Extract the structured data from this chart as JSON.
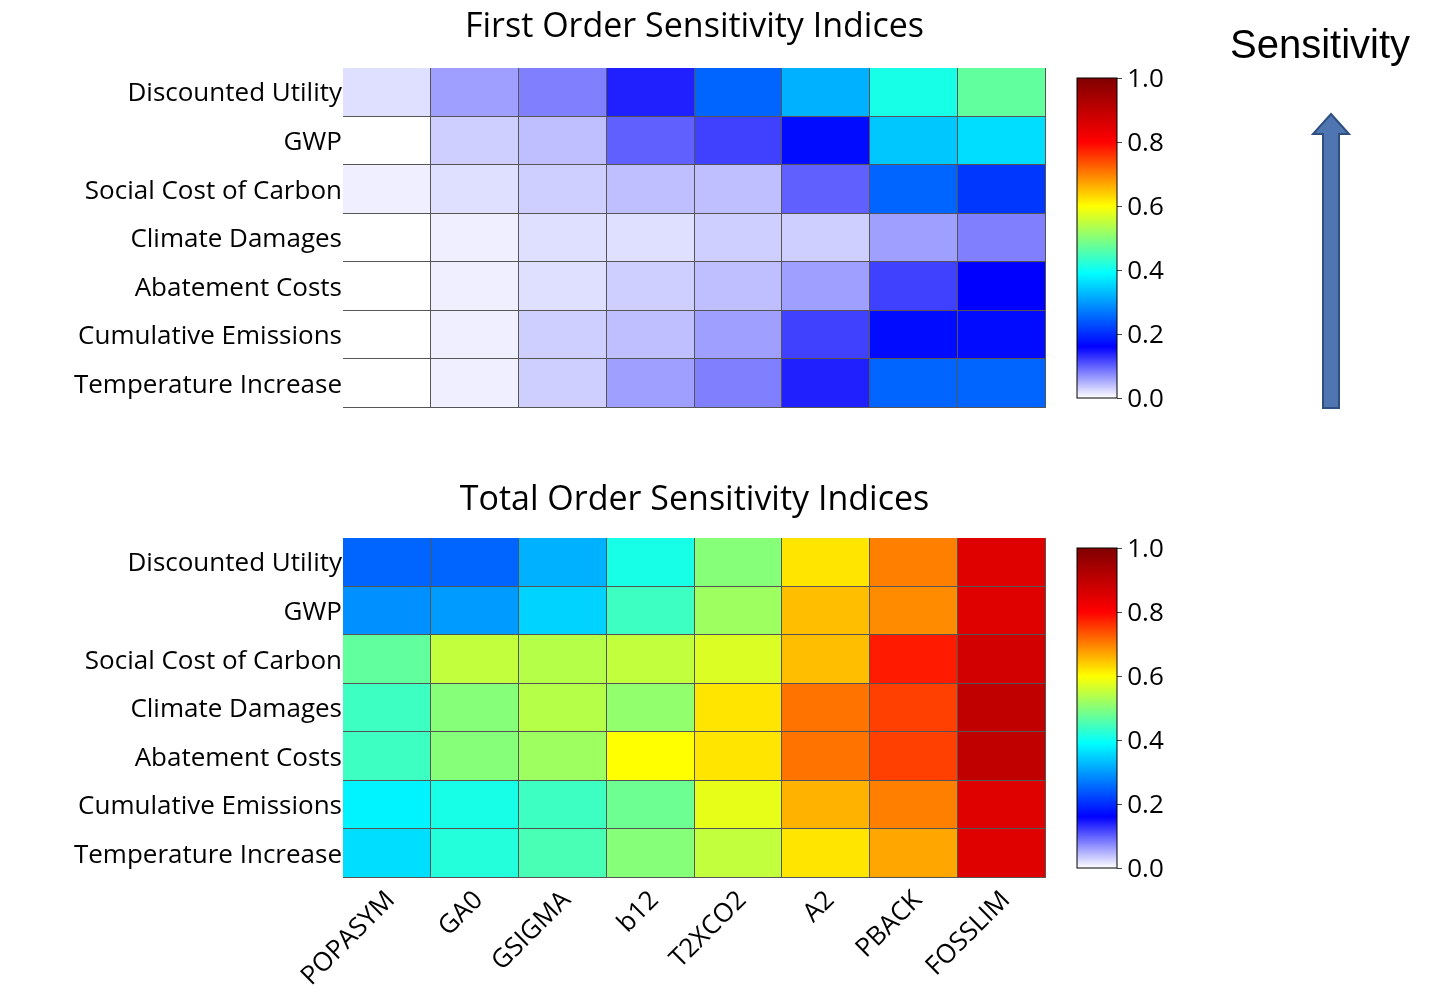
{
  "chart_data": [
    {
      "type": "heatmap",
      "title": "First Order Sensitivity Indices",
      "categories": [
        null,
        null,
        null,
        null,
        null,
        null,
        null,
        null
      ],
      "y_categories": [
        "Discounted Utility",
        "GWP",
        "Social Cost of Carbon",
        "Climate Damages",
        "Abatement Costs",
        "Cumulative Emissions",
        "Temperature Increase"
      ],
      "tick_labels": "y",
      "cells": [
        [
          0.02,
          0.06,
          0.08,
          0.14,
          0.25,
          0.32,
          0.41,
          0.47
        ],
        [
          0,
          0.03,
          0.04,
          0.1,
          0.12,
          0.17,
          0.34,
          0.36
        ],
        [
          0.01,
          0.02,
          0.03,
          0.04,
          0.04,
          0.1,
          0.25,
          0.21
        ],
        [
          0,
          0.01,
          0.02,
          0.02,
          0.03,
          0.03,
          0.06,
          0.08
        ],
        [
          0,
          0.01,
          0.02,
          0.03,
          0.04,
          0.06,
          0.12,
          0.16
        ],
        [
          0,
          0.01,
          0.03,
          0.04,
          0.06,
          0.12,
          0.17,
          0.17
        ],
        [
          0,
          0.01,
          0.03,
          0.06,
          0.08,
          0.14,
          0.25,
          0.25
        ]
      ],
      "clim": [
        0,
        1
      ],
      "cticks": [
        {
          "value": 0,
          "label": "0.0"
        },
        {
          "value": 0.2,
          "label": "0.2"
        },
        {
          "value": 0.4,
          "label": "0.4"
        },
        {
          "value": 0.6,
          "label": "0.6"
        },
        {
          "value": 0.8,
          "label": "0.8"
        },
        {
          "value": 1,
          "label": "1.0"
        }
      ],
      "annotations": [
        "Sensitivity"
      ]
    },
    {
      "type": "heatmap",
      "title": "Total Order Sensitivity Indices",
      "categories": [
        "POPASYM",
        "GA0",
        "GSIGMA",
        "b12",
        "T2XCO2",
        "A2",
        "PBACK",
        "FOSSLIM"
      ],
      "y_categories": [
        "Discounted Utility",
        "GWP",
        "Social Cost of Carbon",
        "Climate Damages",
        "Abatement Costs",
        "Cumulative Emissions",
        "Temperature Increase"
      ],
      "cells": [
        [
          0.25,
          0.25,
          0.32,
          0.41,
          0.5,
          0.62,
          0.7,
          0.85
        ],
        [
          0.29,
          0.3,
          0.35,
          0.44,
          0.52,
          0.65,
          0.69,
          0.85
        ],
        [
          0.47,
          0.55,
          0.54,
          0.55,
          0.57,
          0.65,
          0.78,
          0.87
        ],
        [
          0.44,
          0.5,
          0.54,
          0.51,
          0.62,
          0.71,
          0.75,
          0.9
        ],
        [
          0.44,
          0.5,
          0.52,
          0.6,
          0.62,
          0.71,
          0.75,
          0.9
        ],
        [
          0.38,
          0.41,
          0.44,
          0.48,
          0.58,
          0.66,
          0.7,
          0.85
        ],
        [
          0.36,
          0.42,
          0.45,
          0.5,
          0.55,
          0.62,
          0.67,
          0.85
        ]
      ],
      "clim": [
        0,
        1
      ],
      "cticks": [
        {
          "value": 0,
          "label": "0.0"
        },
        {
          "value": 0.2,
          "label": "0.2"
        },
        {
          "value": 0.4,
          "label": "0.4"
        },
        {
          "value": 0.6,
          "label": "0.6"
        },
        {
          "value": 0.8,
          "label": "0.8"
        },
        {
          "value": 1,
          "label": "1.0"
        }
      ]
    }
  ]
}
